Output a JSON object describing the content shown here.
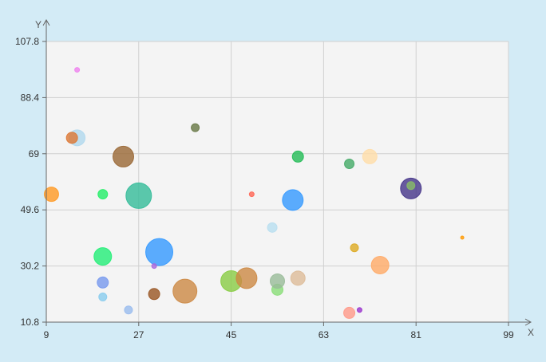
{
  "chart_data": {
    "type": "scatter",
    "subtype": "bubble",
    "xlabel": "X",
    "ylabel": "Y",
    "xlim": [
      9,
      99
    ],
    "ylim": [
      10.8,
      107.8
    ],
    "x_ticks": [
      "9",
      "27",
      "45",
      "63",
      "81",
      "99"
    ],
    "y_ticks": [
      "10.8",
      "30.2",
      "49.6",
      "69",
      "88.4",
      "107.8"
    ],
    "grid": true,
    "legend": "none",
    "colors": {
      "background": "#d3ebf6",
      "plot_area": "#f4f4f4",
      "grid": "#d0d0d0",
      "axis": "#666666"
    },
    "points": [
      {
        "x": 15,
        "y": 98,
        "size": 3,
        "color": "#ee82ee"
      },
      {
        "x": 15,
        "y": 74.5,
        "size": 10,
        "color": "#b0d8ee"
      },
      {
        "x": 14,
        "y": 74.5,
        "size": 7,
        "color": "#dd7733"
      },
      {
        "x": 24,
        "y": 68,
        "size": 13,
        "color": "#996633"
      },
      {
        "x": 38,
        "y": 78,
        "size": 5,
        "color": "#667744"
      },
      {
        "x": 10,
        "y": 55,
        "size": 9,
        "color": "#ff9922"
      },
      {
        "x": 20,
        "y": 55,
        "size": 6,
        "color": "#22ee66"
      },
      {
        "x": 27,
        "y": 54.5,
        "size": 16,
        "color": "#33bb99"
      },
      {
        "x": 49,
        "y": 55,
        "size": 3,
        "color": "#ff6655"
      },
      {
        "x": 58,
        "y": 68,
        "size": 7,
        "color": "#22bb55"
      },
      {
        "x": 68,
        "y": 65.5,
        "size": 6,
        "color": "#44aa66"
      },
      {
        "x": 72,
        "y": 68,
        "size": 9,
        "color": "#ffdda8"
      },
      {
        "x": 80,
        "y": 57,
        "size": 13,
        "color": "#443388"
      },
      {
        "x": 80,
        "y": 58,
        "size": 5,
        "color": "#88bb66"
      },
      {
        "x": 57,
        "y": 53,
        "size": 13,
        "color": "#3399ff"
      },
      {
        "x": 53,
        "y": 43.5,
        "size": 6,
        "color": "#b8def0"
      },
      {
        "x": 69,
        "y": 36.5,
        "size": 5,
        "color": "#ddaa22"
      },
      {
        "x": 90,
        "y": 40,
        "size": 2,
        "color": "#ff9900"
      },
      {
        "x": 20,
        "y": 33.5,
        "size": 11,
        "color": "#22ee77"
      },
      {
        "x": 31,
        "y": 35,
        "size": 17,
        "color": "#3399ff"
      },
      {
        "x": 30,
        "y": 30.2,
        "size": 3,
        "color": "#aa66dd"
      },
      {
        "x": 20,
        "y": 24.5,
        "size": 7,
        "color": "#7799ee"
      },
      {
        "x": 20,
        "y": 19.5,
        "size": 5,
        "color": "#88ccee"
      },
      {
        "x": 25,
        "y": 15,
        "size": 5,
        "color": "#99bbee"
      },
      {
        "x": 30,
        "y": 20.5,
        "size": 7,
        "color": "#995522"
      },
      {
        "x": 36,
        "y": 21.5,
        "size": 15,
        "color": "#cc8844"
      },
      {
        "x": 45,
        "y": 25,
        "size": 13,
        "color": "#88cc44"
      },
      {
        "x": 48,
        "y": 26,
        "size": 13,
        "color": "#cc8844"
      },
      {
        "x": 54,
        "y": 22,
        "size": 7,
        "color": "#88dd77"
      },
      {
        "x": 54,
        "y": 25,
        "size": 9,
        "color": "#99bb99"
      },
      {
        "x": 58,
        "y": 26,
        "size": 9,
        "color": "#ddbb99"
      },
      {
        "x": 74,
        "y": 30.5,
        "size": 11,
        "color": "#ffaa66"
      },
      {
        "x": 70,
        "y": 15,
        "size": 3,
        "color": "#9933cc"
      },
      {
        "x": 68,
        "y": 14,
        "size": 7,
        "color": "#ff9988"
      }
    ]
  }
}
